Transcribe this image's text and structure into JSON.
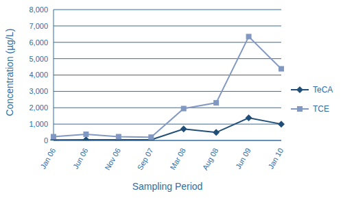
{
  "chart_data": {
    "type": "line",
    "x_label": "Sampling Period",
    "y_label": "Concentration (µg/L)",
    "categories": [
      "Jan 06",
      "Jun 06",
      "Nov 06",
      "Sep 07",
      "Mar 08",
      "Aug 08",
      "Jun 09",
      "Jan 10"
    ],
    "series": [
      {
        "name": "TeCA",
        "color": "#1f4e79",
        "marker": "diamond",
        "values": [
          30,
          40,
          40,
          40,
          700,
          490,
          1380,
          1000
        ]
      },
      {
        "name": "TCE",
        "color": "#8199c2",
        "marker": "square",
        "values": [
          230,
          380,
          230,
          200,
          1950,
          2300,
          6350,
          4380
        ]
      }
    ],
    "ylim": [
      0,
      8000
    ],
    "yticks": [
      0,
      {
        "value": 1000,
        "label": "1,000"
      },
      {
        "value": 2000,
        "label": "2,000"
      },
      {
        "value": 3000,
        "label": "3,000"
      },
      {
        "value": 4000,
        "label": "4,000"
      },
      {
        "value": 5000,
        "label": "5,000"
      },
      {
        "value": 6000,
        "label": "6,000"
      },
      {
        "value": 7000,
        "label": "7,000"
      },
      {
        "value": 8000,
        "label": "8,000"
      }
    ],
    "grid": true,
    "legend": "right"
  }
}
